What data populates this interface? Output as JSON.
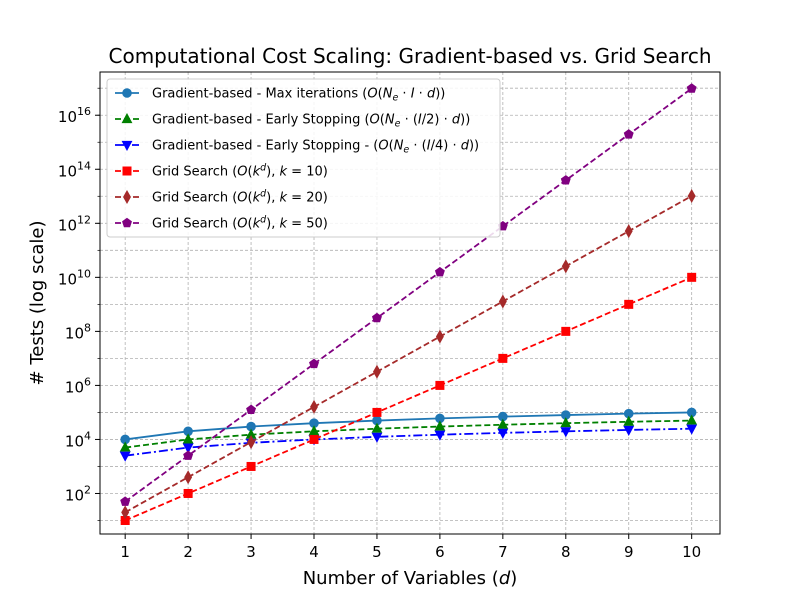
{
  "chart_data": {
    "type": "line",
    "title": "Computational Cost Scaling: Gradient-based vs. Grid Search",
    "xlabel_text": "Number of Variables (",
    "xlabel_symbol": "d",
    "xlabel_close": ")",
    "ylabel": "# Tests (log scale)",
    "yscale": "log",
    "grid": true,
    "legend_position": "upper-left",
    "xlim": [
      0.6,
      10.45
    ],
    "ylim_log10": [
      0.5,
      17.6
    ],
    "x": [
      1,
      2,
      3,
      4,
      5,
      6,
      7,
      8,
      9,
      10
    ],
    "x_tick_labels": [
      "1",
      "2",
      "3",
      "4",
      "5",
      "6",
      "7",
      "8",
      "9",
      "10"
    ],
    "y_ticks_exponent": [
      2,
      4,
      6,
      8,
      10,
      12,
      14,
      16
    ],
    "y_tick_labels": [
      {
        "base": "10",
        "exp": "2"
      },
      {
        "base": "10",
        "exp": "4"
      },
      {
        "base": "10",
        "exp": "6"
      },
      {
        "base": "10",
        "exp": "8"
      },
      {
        "base": "10",
        "exp": "10"
      },
      {
        "base": "10",
        "exp": "12"
      },
      {
        "base": "10",
        "exp": "14"
      },
      {
        "base": "10",
        "exp": "16"
      }
    ],
    "series": [
      {
        "name": "Gradient-based - Max iterations (O(N_e · I · d))",
        "legend_parts": [
          "Gradient-based - Max iterations (",
          "O",
          "(",
          "N",
          "e",
          " · ",
          "I",
          " · ",
          "d",
          "))"
        ],
        "color": "#1f77b4",
        "line_style": "solid",
        "marker": "circle",
        "values": [
          10000,
          20000,
          30000,
          40000,
          50000,
          60000,
          70000,
          80000,
          90000,
          100000
        ]
      },
      {
        "name": "Gradient-based - Early Stopping (O(N_e · (I/2) · d))",
        "legend_parts": [
          "Gradient-based - Early Stopping (",
          "O",
          "(",
          "N",
          "e",
          " · (",
          "I",
          "/2) · ",
          "d",
          "))"
        ],
        "color": "#008000",
        "line_style": "dashed",
        "marker": "triangle-up",
        "values": [
          5000,
          10000,
          15000,
          20000,
          25000,
          30000,
          35000,
          40000,
          45000,
          50000
        ]
      },
      {
        "name": "Gradient-based - Early Stopping - (O(N_e · (I/4) · d))",
        "legend_parts": [
          "Gradient-based - Early Stopping - (",
          "O",
          "(",
          "N",
          "e",
          " · (",
          "I",
          "/4) · ",
          "d",
          "))"
        ],
        "color": "#0000ff",
        "line_style": "dashdot",
        "marker": "triangle-down",
        "values": [
          2500,
          5000,
          7500,
          10000,
          12500,
          15000,
          17500,
          20000,
          22500,
          25000
        ]
      },
      {
        "name": "Grid Search (O(k^d), k = 10)",
        "legend_parts": [
          "Grid Search (",
          "O",
          "(",
          "k",
          "d",
          "), ",
          "k",
          " = 10)"
        ],
        "color": "#ff0000",
        "line_style": "dashed",
        "marker": "square",
        "values": [
          10,
          100,
          1000,
          10000,
          100000,
          1000000,
          10000000,
          100000000,
          1000000000,
          10000000000
        ]
      },
      {
        "name": "Grid Search (O(k^d), k = 20)",
        "legend_parts": [
          "Grid Search (",
          "O",
          "(",
          "k",
          "d",
          "), ",
          "k",
          " = 20)"
        ],
        "color": "#a52a2a",
        "line_style": "dashed",
        "marker": "thin-diamond",
        "values": [
          20,
          400,
          8000,
          160000,
          3200000,
          64000000,
          1280000000,
          25600000000,
          512000000000,
          10240000000000
        ]
      },
      {
        "name": "Grid Search (O(k^d), k = 50)",
        "legend_parts": [
          "Grid Search (",
          "O",
          "(",
          "k",
          "d",
          "), ",
          "k",
          " = 50)"
        ],
        "color": "#800080",
        "line_style": "dashed",
        "marker": "pentagon",
        "values": [
          50,
          2500,
          125000,
          6250000,
          312500000,
          15625000000,
          781250000000,
          39062500000000,
          1953125000000000,
          97656250000000000
        ]
      }
    ]
  }
}
